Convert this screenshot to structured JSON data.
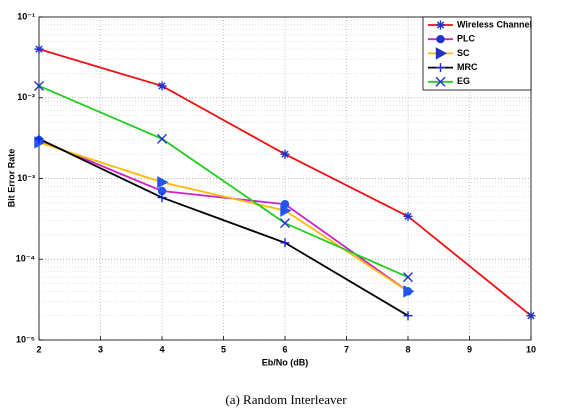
{
  "chart_data": {
    "type": "line",
    "caption": "(a)  Random Interleaver",
    "x_label": "Eb/No (dB)",
    "y_label": "Bit Error Rate",
    "log_y": true,
    "grid": true,
    "legend": "upper right",
    "xlim": [
      2,
      10
    ],
    "xticks": [
      2,
      3,
      4,
      5,
      6,
      7,
      8,
      9,
      10
    ],
    "ylim": [
      1e-05,
      0.1
    ],
    "yticks": [
      {
        "value": 1e-05,
        "label": "10⁻⁵"
      },
      {
        "value": 0.0001,
        "label": "10⁻⁴"
      },
      {
        "value": 0.001,
        "label": "10⁻³"
      },
      {
        "value": 0.01,
        "label": "10⁻²"
      },
      {
        "value": 0.1,
        "label": "10⁻¹"
      }
    ],
    "series": [
      {
        "name": "Wireless Channel",
        "color": "#ee1111",
        "marker": "star",
        "x": [
          2,
          4,
          6,
          8,
          10
        ],
        "values": [
          0.04,
          0.014,
          0.002,
          0.00034,
          2e-05
        ]
      },
      {
        "name": "PLC",
        "color": "#cc22cc",
        "marker": "circle",
        "x": [
          2,
          4,
          6,
          8
        ],
        "values": [
          0.003,
          0.0007,
          0.00048,
          4e-05
        ]
      },
      {
        "name": "SC",
        "color": "#ffbb00",
        "marker": "triangle-right",
        "x": [
          2,
          4,
          6,
          8
        ],
        "values": [
          0.0028,
          0.0009,
          0.0004,
          4e-05
        ]
      },
      {
        "name": "MRC",
        "color": "#000000",
        "marker": "plus",
        "x": [
          2,
          4,
          6,
          8
        ],
        "values": [
          0.0031,
          0.00058,
          0.00016,
          2e-05
        ]
      },
      {
        "name": "EG",
        "color": "#22cc22",
        "marker": "x",
        "x": [
          2,
          4,
          6,
          8
        ],
        "values": [
          0.014,
          0.0031,
          0.00028,
          6e-05
        ]
      }
    ]
  }
}
